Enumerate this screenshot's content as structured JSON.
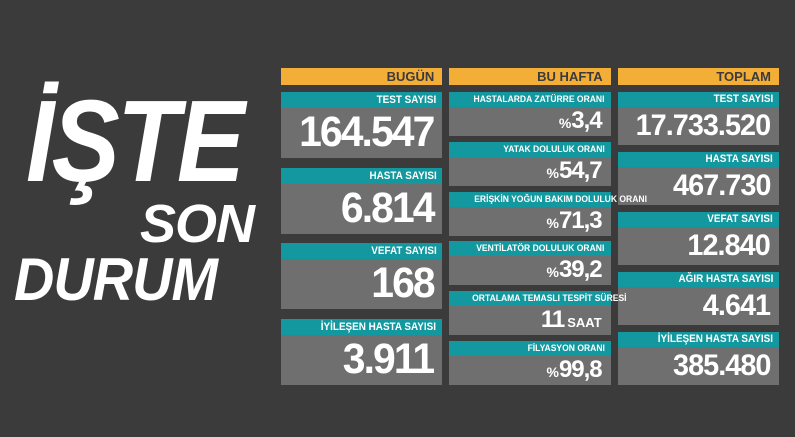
{
  "title": {
    "line1": "İŞTE",
    "line2": "SON",
    "line3": "DURUM"
  },
  "colors": {
    "background": "#3b3b3b",
    "header_orange": "#f3ae38",
    "label_teal": "#13989f",
    "card_gray": "#6f6f6f",
    "text_white": "#ffffff",
    "header_text_dark": "#3b3b3b"
  },
  "columns": [
    {
      "header": "BUGÜN",
      "cards": [
        {
          "label": "TEST SAYISI",
          "value": "164.547"
        },
        {
          "label": "HASTA SAYISI",
          "value": "6.814"
        },
        {
          "label": "VEFAT SAYISI",
          "value": "168"
        },
        {
          "label": "İYİLEŞEN HASTA SAYISI",
          "value": "3.911"
        }
      ]
    },
    {
      "header": "BU HAFTA",
      "cards": [
        {
          "label": "HASTALARDA ZATÜRRE ORANI",
          "unit_before": "%",
          "value": "3,4"
        },
        {
          "label": "YATAK DOLULUK ORANI",
          "unit_before": "%",
          "value": "54,7"
        },
        {
          "label": "ERİŞKİN YOĞUN BAKIM DOLULUK ORANI",
          "unit_before": "%",
          "value": "71,3"
        },
        {
          "label": "VENTİLATÖR DOLULUK ORANI",
          "unit_before": "%",
          "value": "39,2"
        },
        {
          "label": "ORTALAMA TEMASLI TESPİT SÜRESİ",
          "value": "11",
          "unit_after": "SAAT"
        },
        {
          "label": "FİLYASYON ORANI",
          "unit_before": "%",
          "value": "99,8"
        }
      ]
    },
    {
      "header": "TOPLAM",
      "cards": [
        {
          "label": "TEST SAYISI",
          "value": "17.733.520"
        },
        {
          "label": "HASTA SAYISI",
          "value": "467.730"
        },
        {
          "label": "VEFAT SAYISI",
          "value": "12.840"
        },
        {
          "label": "AĞIR HASTA SAYISI",
          "value": "4.641"
        },
        {
          "label": "İYİLEŞEN HASTA SAYISI",
          "value": "385.480"
        }
      ]
    }
  ],
  "chart_data": {
    "type": "table",
    "title": "İŞTE SON DURUM",
    "groups": [
      {
        "name": "BUGÜN",
        "rows": [
          [
            "TEST SAYISI",
            "164.547"
          ],
          [
            "HASTA SAYISI",
            "6.814"
          ],
          [
            "VEFAT SAYISI",
            "168"
          ],
          [
            "İYİLEŞEN HASTA SAYISI",
            "3.911"
          ]
        ]
      },
      {
        "name": "BU HAFTA",
        "rows": [
          [
            "HASTALARDA ZATÜRRE ORANI",
            "%3,4"
          ],
          [
            "YATAK DOLULUK ORANI",
            "%54,7"
          ],
          [
            "ERİŞKİN YOĞUN BAKIM DOLULUK ORANI",
            "%71,3"
          ],
          [
            "VENTİLATÖR DOLULUK ORANI",
            "%39,2"
          ],
          [
            "ORTALAMA TEMASLI TESPİT SÜRESİ",
            "11 SAAT"
          ],
          [
            "FİLYASYON ORANI",
            "%99,8"
          ]
        ]
      },
      {
        "name": "TOPLAM",
        "rows": [
          [
            "TEST SAYISI",
            "17.733.520"
          ],
          [
            "HASTA SAYISI",
            "467.730"
          ],
          [
            "VEFAT SAYISI",
            "12.840"
          ],
          [
            "AĞIR HASTA SAYISI",
            "4.641"
          ],
          [
            "İYİLEŞEN HASTA SAYISI",
            "385.480"
          ]
        ]
      }
    ]
  }
}
